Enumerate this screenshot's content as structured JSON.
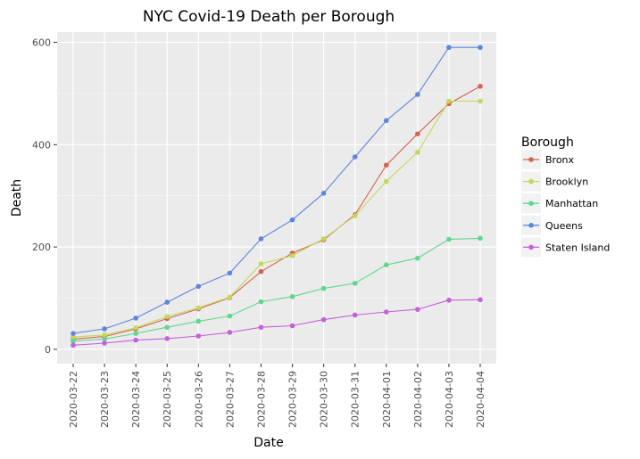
{
  "chart_data": {
    "type": "line",
    "title": "NYC Covid-19 Death per Borough",
    "xlabel": "Date",
    "ylabel": "Death",
    "ylim": [
      -28,
      620
    ],
    "yticks": [
      0,
      200,
      400,
      600
    ],
    "categories": [
      "2020-03-22",
      "2020-03-23",
      "2020-03-24",
      "2020-03-25",
      "2020-03-26",
      "2020-03-27",
      "2020-03-28",
      "2020-03-29",
      "2020-03-30",
      "2020-03-31",
      "2020-04-01",
      "2020-04-02",
      "2020-04-03",
      "2020-04-04"
    ],
    "grid": true,
    "legend_title": "Borough",
    "legend_position": "right",
    "series": [
      {
        "name": "Bronx",
        "color": "#d5634e",
        "values": [
          20,
          25,
          40,
          60,
          79,
          101,
          152,
          188,
          214,
          263,
          360,
          421,
          480,
          514
        ]
      },
      {
        "name": "Brooklyn",
        "color": "#c3d85a",
        "values": [
          24,
          28,
          42,
          64,
          81,
          102,
          167,
          183,
          216,
          261,
          328,
          385,
          485,
          485
        ]
      },
      {
        "name": "Manhattan",
        "color": "#5fd78f",
        "values": [
          16,
          20,
          31,
          43,
          55,
          65,
          93,
          103,
          119,
          129,
          165,
          178,
          215,
          217
        ]
      },
      {
        "name": "Queens",
        "color": "#5d86dc",
        "values": [
          31,
          40,
          61,
          92,
          123,
          149,
          216,
          253,
          305,
          376,
          447,
          498,
          590,
          590
        ]
      },
      {
        "name": "Staten Island",
        "color": "#c55fdc",
        "values": [
          8,
          12,
          18,
          21,
          26,
          33,
          43,
          46,
          58,
          67,
          73,
          78,
          96,
          97
        ]
      }
    ]
  }
}
